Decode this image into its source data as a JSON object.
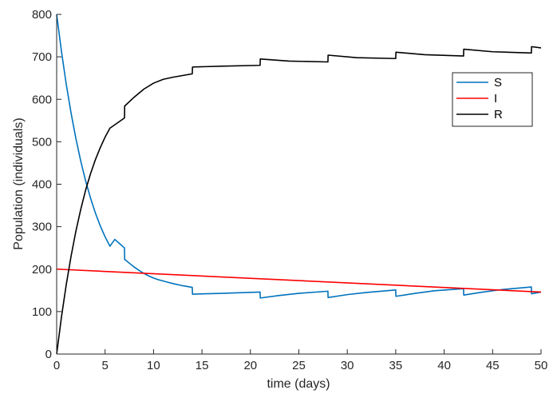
{
  "chart_data": {
    "type": "line",
    "title": "",
    "xlabel": "time (days)",
    "ylabel": "Population (individuals)",
    "xlim": [
      0,
      50
    ],
    "ylim": [
      0,
      800
    ],
    "xticks": [
      0,
      5,
      10,
      15,
      20,
      25,
      30,
      35,
      40,
      45,
      50
    ],
    "yticks": [
      0,
      100,
      200,
      300,
      400,
      500,
      600,
      700,
      800
    ],
    "grid": false,
    "legend_position": "top-right",
    "series": [
      {
        "name": "S",
        "color": "#0072BD",
        "x": [
          0,
          0.5,
          1,
          1.5,
          2,
          2.5,
          3,
          3.5,
          4,
          4.5,
          5,
          5.5,
          6,
          6.5,
          7,
          7.02,
          7.5,
          8,
          8.5,
          9,
          9.5,
          10,
          10.5,
          11,
          11.5,
          12,
          13,
          14,
          14.02,
          17,
          21,
          21.02,
          23,
          25,
          28,
          28.02,
          30,
          32,
          35,
          35.02,
          37,
          39,
          42,
          42.02,
          44,
          46,
          49,
          49.02,
          50
        ],
        "y": [
          800,
          712,
          634,
          566,
          506,
          453,
          407,
          367,
          332,
          302,
          276,
          254,
          270,
          260,
          250,
          223,
          214,
          205,
          197,
          190,
          184,
          179,
          175,
          172,
          169,
          166,
          161,
          157,
          141,
          143,
          146,
          132,
          138,
          143,
          148,
          133,
          140,
          145,
          151,
          136,
          143,
          149,
          154,
          139,
          146,
          152,
          158,
          142,
          146
        ]
      },
      {
        "name": "I",
        "color": "#FF0000",
        "x": [
          0,
          50
        ],
        "y": [
          200,
          146
        ]
      },
      {
        "name": "R",
        "color": "#000000",
        "x": [
          0,
          0.5,
          1,
          1.5,
          2,
          2.5,
          3,
          3.5,
          4,
          4.5,
          5,
          5.5,
          6,
          6.5,
          7,
          7.02,
          8,
          9,
          10,
          11,
          12,
          13,
          14,
          14.02,
          17,
          21,
          21.02,
          24,
          28,
          28.02,
          31,
          35,
          35.02,
          38,
          42,
          42.02,
          45,
          49,
          49.02,
          50
        ],
        "y": [
          0,
          88,
          165,
          232,
          291,
          342,
          387,
          425,
          458,
          486,
          511,
          532,
          540,
          548,
          556,
          584,
          605,
          624,
          638,
          647,
          652,
          656,
          660,
          676,
          678,
          680,
          695,
          690,
          688,
          704,
          698,
          696,
          711,
          705,
          702,
          718,
          712,
          709,
          724,
          721
        ]
      }
    ]
  }
}
